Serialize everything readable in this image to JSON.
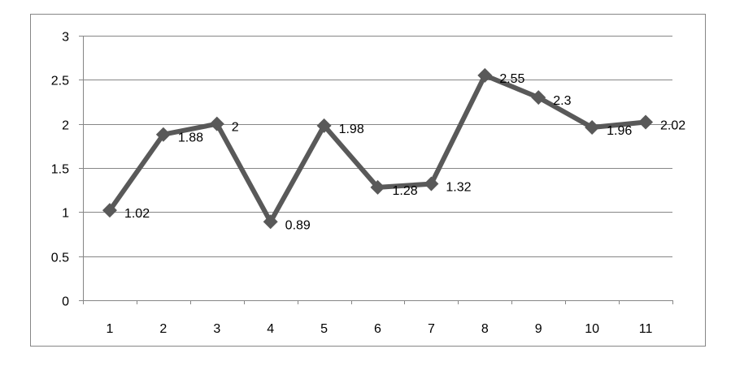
{
  "chart_data": {
    "type": "line",
    "title": "",
    "xlabel": "",
    "ylabel": "",
    "categories": [
      "1",
      "2",
      "3",
      "4",
      "5",
      "6",
      "7",
      "8",
      "9",
      "10",
      "11"
    ],
    "series": [
      {
        "values": [
          1.02,
          1.88,
          2,
          0.89,
          1.98,
          1.28,
          1.32,
          2.55,
          2.3,
          1.96,
          2.02
        ],
        "labels": [
          "1.02",
          "1.88",
          "2",
          "0.89",
          "1.98",
          "1.28",
          "1.32",
          "2.55",
          "2.3",
          "1.96",
          "2.02"
        ],
        "color": "#595959",
        "marker": "diamond"
      }
    ],
    "ylim": [
      0,
      3
    ],
    "yticks": [
      "0",
      "0.5",
      "1",
      "1.5",
      "2",
      "2.5",
      "3"
    ],
    "grid": true,
    "legend": "none",
    "colors": {
      "line": "#595959",
      "grid": "#868686",
      "frame": "#868686"
    }
  }
}
